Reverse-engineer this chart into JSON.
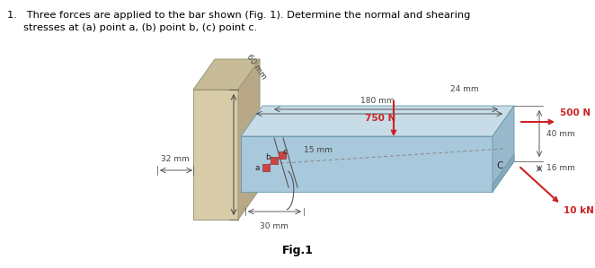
{
  "bg_color": "#ffffff",
  "wall_front_color": "#d8cba8",
  "wall_top_color": "#c8bb98",
  "wall_right_color": "#b8a888",
  "bar_top_color": "#c8dce8",
  "bar_front_color": "#a8c8dc",
  "bar_right_top_color": "#98b8cc",
  "bar_right_bot_color": "#88a8bc",
  "force_color": "#cc2222",
  "dim_color": "#444444",
  "text_color": "#000000",
  "point_color": "#cc4444",
  "title_line1": "1.   Three forces are applied to the bar shown (Fig. 1). Determine the normal and shearing",
  "title_line2": "     stresses at (a) point a, (b) point b, (c) point c.",
  "fig_label": "Fig.1"
}
